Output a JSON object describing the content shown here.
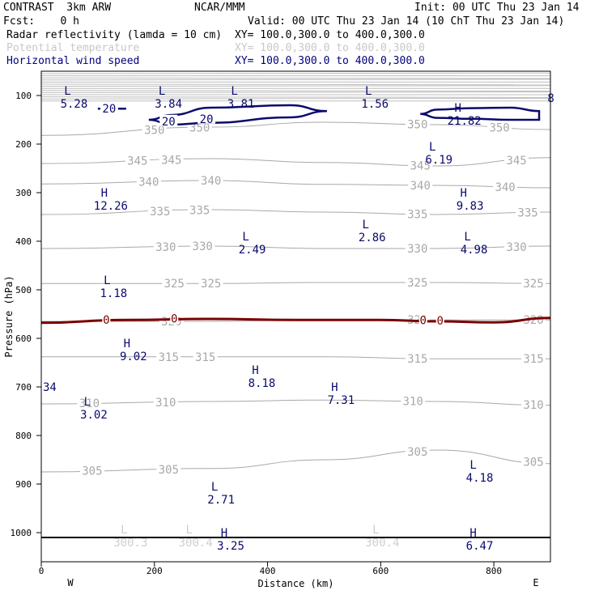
{
  "header": {
    "model": "CONTRAST  3km ARW",
    "org": "NCAR/MMM",
    "init": "Init: 00 UTC Thu 23 Jan 14",
    "fcst": "Fcst:    0 h",
    "valid": "Valid: 00 UTC Thu 23 Jan 14 (10 ChT Thu 23 Jan 14)",
    "fields": [
      {
        "name": "Radar reflectivity (lamda = 10 cm)",
        "xy": "XY= 100.0,300.0 to 400.0,300.0",
        "color": "#000000"
      },
      {
        "name": "Potential temperature",
        "xy": "XY= 100.0,300.0 to 400.0,300.0",
        "color": "#c8c8c8"
      },
      {
        "name": "Horizontal wind speed",
        "xy": "XY= 100.0,300.0 to 400.0,300.0",
        "color": "#00007f"
      }
    ]
  },
  "colors": {
    "theta": "#a8a8a8",
    "wind": "#0a0a6e",
    "freezing": "#7a0000",
    "axis": "#000000"
  },
  "chart_data": {
    "type": "cross-section contour",
    "xlabel": "Distance (km)",
    "ylabel": "Pressure (hPa)",
    "xlim": [
      0,
      900
    ],
    "ylim": [
      1060,
      50
    ],
    "x_ticks": [
      "0",
      "200",
      "400",
      "600",
      "800"
    ],
    "x_tick_values": [
      0,
      200,
      400,
      600,
      800
    ],
    "y_ticks": [
      "100",
      "200",
      "300",
      "400",
      "500",
      "600",
      "700",
      "800",
      "900",
      "1000"
    ],
    "y_tick_values": [
      100,
      200,
      300,
      400,
      500,
      600,
      700,
      800,
      900,
      1000
    ],
    "x_ends": {
      "left": "W",
      "right": "E"
    },
    "surface_pressure": 1010,
    "theta_contours": [
      {
        "level": "350",
        "x": [
          0,
          300,
          500,
          700,
          900
        ],
        "p": [
          182,
          165,
          155,
          160,
          170
        ],
        "labels": [
          [
            200,
            "350"
          ],
          [
            280,
            "350"
          ],
          [
            665,
            "350"
          ],
          [
            810,
            "350"
          ]
        ]
      },
      {
        "level": "345",
        "x": [
          0,
          300,
          500,
          700,
          900
        ],
        "p": [
          240,
          230,
          238,
          245,
          228
        ],
        "labels": [
          [
            170,
            "345"
          ],
          [
            230,
            "345"
          ],
          [
            670,
            "345"
          ],
          [
            840,
            "345"
          ]
        ]
      },
      {
        "level": "340",
        "x": [
          0,
          300,
          500,
          700,
          900
        ],
        "p": [
          282,
          275,
          283,
          285,
          290
        ],
        "labels": [
          [
            190,
            "340"
          ],
          [
            300,
            "340"
          ],
          [
            670,
            "340"
          ],
          [
            820,
            "340"
          ]
        ]
      },
      {
        "level": "335",
        "x": [
          0,
          300,
          500,
          700,
          900
        ],
        "p": [
          345,
          335,
          340,
          345,
          340
        ],
        "labels": [
          [
            210,
            "335"
          ],
          [
            280,
            "335"
          ],
          [
            665,
            "335"
          ],
          [
            860,
            "335"
          ]
        ]
      },
      {
        "level": "330",
        "x": [
          0,
          300,
          500,
          700,
          900
        ],
        "p": [
          415,
          410,
          415,
          415,
          410
        ],
        "labels": [
          [
            220,
            "330"
          ],
          [
            285,
            "330"
          ],
          [
            665,
            "330"
          ],
          [
            840,
            "330"
          ]
        ]
      },
      {
        "level": "325",
        "x": [
          0,
          300,
          500,
          700,
          900
        ],
        "p": [
          487,
          487,
          485,
          485,
          487
        ],
        "labels": [
          [
            235,
            "325"
          ],
          [
            300,
            "325"
          ],
          [
            665,
            "325"
          ],
          [
            870,
            "325"
          ]
        ]
      },
      {
        "level": "320",
        "x": [
          0,
          300,
          500,
          700,
          900
        ],
        "p": [
          565,
          565,
          562,
          562,
          562
        ],
        "labels": [
          [
            230,
            "320"
          ],
          [
            665,
            "320"
          ],
          [
            870,
            "320"
          ]
        ]
      },
      {
        "level": "315",
        "x": [
          0,
          300,
          500,
          700,
          900
        ],
        "p": [
          638,
          638,
          638,
          642,
          642
        ],
        "labels": [
          [
            225,
            "315"
          ],
          [
            290,
            "315"
          ],
          [
            665,
            "315"
          ],
          [
            870,
            "315"
          ]
        ]
      },
      {
        "level": "310",
        "x": [
          0,
          300,
          500,
          700,
          900
        ],
        "p": [
          735,
          730,
          727,
          730,
          738
        ],
        "labels": [
          [
            85,
            "310"
          ],
          [
            220,
            "310"
          ],
          [
            657,
            "310"
          ],
          [
            870,
            "310"
          ]
        ]
      },
      {
        "level": "305",
        "x": [
          0,
          300,
          500,
          700,
          900
        ],
        "p": [
          875,
          868,
          850,
          830,
          858
        ],
        "labels": [
          [
            90,
            "305"
          ],
          [
            225,
            "305"
          ],
          [
            665,
            "305"
          ],
          [
            870,
            "305"
          ]
        ]
      }
    ],
    "freezing_line": {
      "label": "0",
      "x": [
        0,
        150,
        300,
        450,
        600,
        700,
        800,
        900
      ],
      "p": [
        568,
        562,
        560,
        562,
        562,
        565,
        567,
        558
      ],
      "labels": [
        [
          115,
          "0"
        ],
        [
          235,
          "0"
        ],
        [
          675,
          "0"
        ],
        [
          705,
          "0"
        ]
      ]
    },
    "wind_contours": [
      {
        "level": "20",
        "x": [
          100,
          150
        ],
        "p": [
          127,
          127
        ]
      },
      {
        "level": "20",
        "x": [
          190,
          230,
          300,
          440,
          505,
          440,
          300,
          230,
          190
        ],
        "p": [
          150,
          160,
          156,
          145,
          132,
          120,
          125,
          140,
          150
        ]
      },
      {
        "level": "20",
        "x": [
          670,
          700,
          760,
          830,
          880,
          880,
          830,
          760,
          700,
          670
        ],
        "p": [
          138,
          146,
          148,
          150,
          150,
          132,
          125,
          126,
          129,
          138
        ]
      }
    ],
    "wind_labels": [
      [
        120,
        127,
        "20"
      ],
      [
        225,
        153,
        "20"
      ],
      [
        292,
        148,
        "20"
      ]
    ],
    "extrema": [
      {
        "type": "L",
        "value": "5.28",
        "x": 55,
        "p": 90
      },
      {
        "type": "L",
        "value": "3.84",
        "x": 222,
        "p": 90
      },
      {
        "type": "L",
        "value": "3.81",
        "x": 350,
        "p": 90
      },
      {
        "type": "L",
        "value": "1.56",
        "x": 587,
        "p": 90
      },
      {
        "type": "H",
        "value": "21.82",
        "x": 745,
        "p": 125
      },
      {
        "type": "L",
        "value": "6.19",
        "x": 700,
        "p": 205
      },
      {
        "type": "H",
        "value": "12.26",
        "x": 120,
        "p": 300
      },
      {
        "type": "H",
        "value": "9.83",
        "x": 755,
        "p": 300
      },
      {
        "type": "L",
        "value": "2.86",
        "x": 582,
        "p": 365
      },
      {
        "type": "L",
        "value": "2.49",
        "x": 370,
        "p": 390
      },
      {
        "type": "L",
        "value": "4.98",
        "x": 762,
        "p": 390
      },
      {
        "type": "L",
        "value": "1.18",
        "x": 125,
        "p": 480
      },
      {
        "type": "H",
        "value": "9.02",
        "x": 160,
        "p": 610
      },
      {
        "type": "H",
        "value": "8.18",
        "x": 387,
        "p": 665
      },
      {
        "type": "H",
        "value": "7.31",
        "x": 527,
        "p": 700
      },
      {
        "type": "L",
        "value": "3.02",
        "x": 90,
        "p": 730
      },
      {
        "type": "L",
        "value": "4.18",
        "x": 772,
        "p": 860
      },
      {
        "type": "L",
        "value": "2.71",
        "x": 315,
        "p": 905
      },
      {
        "type": "H",
        "value": "3.25",
        "x": 332,
        "p": 1000
      },
      {
        "type": "H",
        "value": "6.47",
        "x": 772,
        "p": 1000
      }
    ],
    "edge_labels": [
      {
        "value": "34",
        "x": 0,
        "p": 700
      },
      {
        "value": "8",
        "x": 892,
        "p": 105
      }
    ],
    "surface_theta": [
      {
        "type": "L",
        "value": "300.3",
        "x": 155,
        "p": 1005
      },
      {
        "type": "L",
        "value": "300.4",
        "x": 270,
        "p": 1005
      },
      {
        "type": "L",
        "value": "300.4",
        "x": 600,
        "p": 1005
      }
    ]
  }
}
